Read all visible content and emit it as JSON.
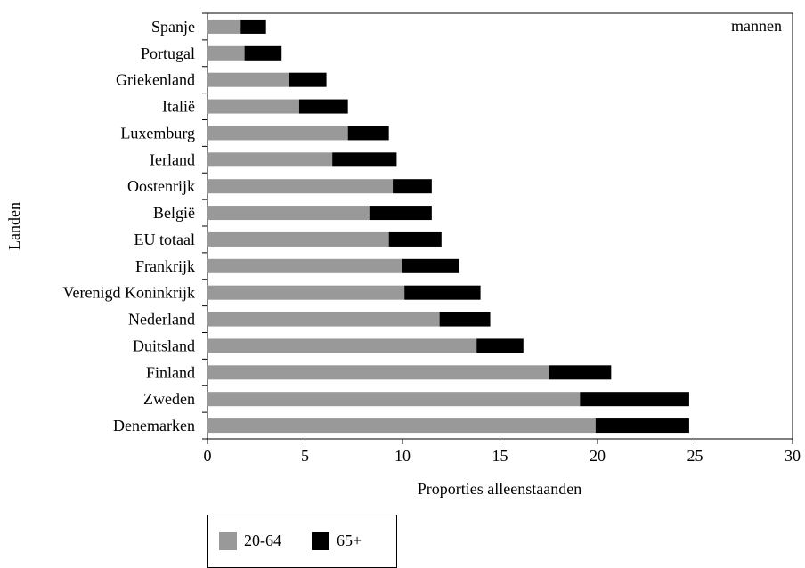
{
  "chart_data": {
    "type": "bar",
    "orientation": "horizontal",
    "stacked": true,
    "annotation": "mannen",
    "xlabel": "Proporties alleenstaanden",
    "ylabel": "Landen",
    "xlim": [
      0,
      30
    ],
    "xticks": [
      "0",
      "5",
      "10",
      "15",
      "20",
      "25",
      "30"
    ],
    "categories": [
      "Spanje",
      "Portugal",
      "Griekenland",
      "Italië",
      "Luxemburg",
      "Ierland",
      "Oostenrijk",
      "België",
      "EU totaal",
      "Frankrijk",
      "Verenigd Koninkrijk",
      "Nederland",
      "Duitsland",
      "Finland",
      "Zweden",
      "Denemarken"
    ],
    "series": [
      {
        "name": "20-64",
        "color": "#999999",
        "values": [
          1.7,
          1.9,
          4.2,
          4.7,
          7.2,
          6.4,
          9.5,
          8.3,
          9.3,
          10.0,
          10.1,
          11.9,
          13.8,
          17.5,
          19.1,
          19.9
        ]
      },
      {
        "name": "65+",
        "color": "#000000",
        "values": [
          1.3,
          1.9,
          1.9,
          2.5,
          2.1,
          3.3,
          2.0,
          3.2,
          2.7,
          2.9,
          3.9,
          2.6,
          2.4,
          3.2,
          5.6,
          4.8
        ]
      }
    ],
    "legend_position": "bottom-left"
  }
}
